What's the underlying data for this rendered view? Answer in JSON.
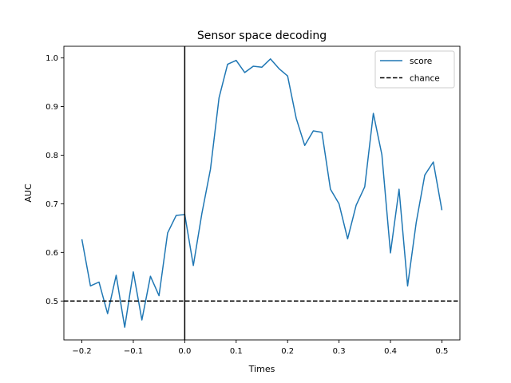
{
  "chart_data": {
    "type": "line",
    "title": "Sensor space decoding",
    "xlabel": "Times",
    "ylabel": "AUC",
    "xlim": [
      -0.235,
      0.535
    ],
    "ylim": [
      0.42,
      1.024
    ],
    "xticks": [
      -0.2,
      -0.1,
      0.0,
      0.1,
      0.2,
      0.3,
      0.4,
      0.5
    ],
    "xtick_labels": [
      "−0.2",
      "−0.1",
      "0.0",
      "0.1",
      "0.2",
      "0.3",
      "0.4",
      "0.5"
    ],
    "yticks": [
      0.5,
      0.6,
      0.7,
      0.8,
      0.9,
      1.0
    ],
    "ytick_labels": [
      "0.5",
      "0.6",
      "0.7",
      "0.8",
      "0.9",
      "1.0"
    ],
    "grid": false,
    "legend_position": "top-right",
    "series": [
      {
        "name": "score",
        "color": "#1f77b4",
        "style": "solid",
        "x": [
          -0.2,
          -0.1833,
          -0.1667,
          -0.15,
          -0.1333,
          -0.1167,
          -0.1,
          -0.0833,
          -0.0667,
          -0.05,
          -0.0333,
          -0.0167,
          0.0,
          0.0167,
          0.0333,
          0.05,
          0.0667,
          0.0833,
          0.1,
          0.1167,
          0.1333,
          0.15,
          0.1667,
          0.1833,
          0.2,
          0.2167,
          0.2333,
          0.25,
          0.2667,
          0.2833,
          0.3,
          0.3167,
          0.3333,
          0.35,
          0.3667,
          0.3833,
          0.4,
          0.4167,
          0.4333,
          0.45,
          0.4667,
          0.4833,
          0.5
        ],
        "y": [
          0.627,
          0.531,
          0.539,
          0.474,
          0.553,
          0.446,
          0.56,
          0.461,
          0.551,
          0.511,
          0.64,
          0.676,
          0.678,
          0.573,
          0.68,
          0.771,
          0.918,
          0.987,
          0.995,
          0.97,
          0.983,
          0.981,
          0.998,
          0.978,
          0.963,
          0.876,
          0.82,
          0.85,
          0.847,
          0.73,
          0.7,
          0.628,
          0.697,
          0.735,
          0.886,
          0.801,
          0.599,
          0.73,
          0.531,
          0.661,
          0.759,
          0.786,
          0.687
        ]
      },
      {
        "name": "chance",
        "color": "#000000",
        "style": "dashed",
        "hline": 0.5
      }
    ],
    "vline": {
      "x": 0.0,
      "color": "#000000"
    }
  }
}
